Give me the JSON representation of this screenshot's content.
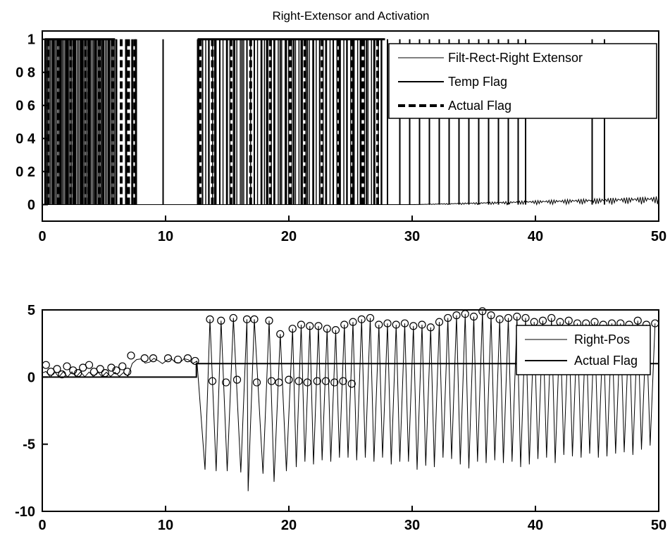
{
  "chart_data": [
    {
      "type": "line",
      "title": "Right-Extensor and Activation",
      "xlim": [
        0,
        50
      ],
      "ylim": [
        -0.1,
        1.05
      ],
      "x_ticks": [
        "0",
        "10",
        "20",
        "30",
        "40",
        "50"
      ],
      "y_ticks": [
        "0",
        "0 2",
        "0 4",
        "0 6",
        "0 8",
        "1"
      ],
      "y_tick_values": [
        0,
        0.2,
        0.4,
        0.6,
        0.8,
        1
      ],
      "legend": {
        "position": "top-right",
        "entries": [
          "Filt-Rect-Right Extensor",
          "Temp Flag",
          "Actual Flag"
        ]
      },
      "series": [
        {
          "name": "Filt-Rect-Right Extensor",
          "style": "solid-thin",
          "x_range": [
            0,
            50
          ],
          "baseline": 0.0,
          "late_amplitude": 0.05
        },
        {
          "name": "Temp Flag",
          "style": "solid",
          "pulses_x": [
            0.3,
            0.9,
            1.5,
            2.0,
            2.6,
            3.2,
            3.8,
            4.3,
            4.9,
            5.4,
            6.0,
            6.8,
            7.3,
            7.6,
            9.8,
            12.6,
            13.0,
            13.5,
            14.0,
            14.4,
            15.0,
            15.6,
            16.2,
            16.6,
            17.2,
            17.8,
            18.2,
            18.8,
            19.3,
            19.8,
            20.4,
            21.0,
            21.5,
            22.0,
            22.5,
            23.0,
            23.6,
            24.1,
            24.7,
            25.2,
            25.8,
            26.3,
            26.9,
            27.5,
            28.0,
            29.0,
            29.8,
            30.6,
            31.4,
            32.2,
            33.0,
            33.8,
            34.6,
            35.4,
            36.2,
            37.0,
            37.8,
            38.6,
            39.2,
            44.6,
            45.6
          ],
          "range": [
            0,
            1
          ]
        },
        {
          "name": "Actual Flag",
          "style": "dashed",
          "pulses_x": [
            0.5,
            1.3,
            2.3,
            3.5,
            4.6,
            5.7,
            6.4,
            7.0,
            7.5,
            12.8,
            13.8,
            15.3,
            16.9,
            18.5,
            20.1,
            21.3,
            22.7,
            24.0,
            25.1,
            26.0,
            27.2
          ],
          "range": [
            0,
            1
          ]
        }
      ]
    },
    {
      "type": "line",
      "title": "",
      "xlim": [
        0,
        50
      ],
      "ylim": [
        -10,
        5
      ],
      "x_ticks": [
        "0",
        "10",
        "20",
        "30",
        "40",
        "50"
      ],
      "y_ticks": [
        "-10",
        "-5",
        "0",
        "5"
      ],
      "y_tick_values": [
        -10,
        -5,
        0,
        5
      ],
      "legend": {
        "position": "top-right",
        "entries": [
          "Right-Pos",
          "Actual Flag"
        ]
      },
      "series": [
        {
          "name": "Right-Pos",
          "style": "solid-thin",
          "cycles": [
            [
              13.2,
              -6.9,
              13.6,
              4.3
            ],
            [
              14.1,
              -7.0,
              14.5,
              4.2
            ],
            [
              15.0,
              -7.0,
              15.5,
              4.4
            ],
            [
              16.1,
              -7.1,
              16.6,
              4.3
            ],
            [
              16.7,
              -8.5,
              17.2,
              4.3
            ],
            [
              17.9,
              -7.2,
              18.4,
              4.2
            ],
            [
              18.8,
              -7.8,
              19.3,
              3.2
            ],
            [
              19.8,
              -7.0,
              20.3,
              3.6
            ],
            [
              20.6,
              -6.7,
              21.0,
              3.9
            ],
            [
              21.3,
              -6.3,
              21.7,
              3.8
            ],
            [
              22.0,
              -6.5,
              22.4,
              3.8
            ],
            [
              22.7,
              -6.2,
              23.1,
              3.6
            ],
            [
              23.4,
              -6.3,
              23.8,
              3.5
            ],
            [
              24.1,
              -6.0,
              24.5,
              3.9
            ],
            [
              24.8,
              -6.0,
              25.2,
              4.1
            ],
            [
              25.5,
              -6.2,
              25.9,
              4.3
            ],
            [
              26.2,
              -6.0,
              26.6,
              4.4
            ],
            [
              26.9,
              -6.3,
              27.3,
              3.9
            ],
            [
              27.6,
              -6.0,
              28.0,
              4.0
            ],
            [
              28.3,
              -6.5,
              28.7,
              3.9
            ],
            [
              29.0,
              -6.3,
              29.4,
              4.0
            ],
            [
              29.7,
              -6.3,
              30.1,
              3.8
            ],
            [
              30.4,
              -6.9,
              30.8,
              3.9
            ],
            [
              31.1,
              -6.6,
              31.5,
              3.7
            ],
            [
              31.8,
              -6.7,
              32.2,
              4.1
            ],
            [
              32.5,
              -6.0,
              32.9,
              4.4
            ],
            [
              33.2,
              -6.1,
              33.6,
              4.6
            ],
            [
              33.9,
              -6.5,
              34.3,
              4.7
            ],
            [
              34.6,
              -6.8,
              35.0,
              4.5
            ],
            [
              35.3,
              -6.3,
              35.7,
              4.9
            ],
            [
              36.0,
              -6.4,
              36.4,
              4.6
            ],
            [
              36.7,
              -6.2,
              37.1,
              4.3
            ],
            [
              37.4,
              -6.4,
              37.8,
              4.4
            ],
            [
              38.1,
              -6.3,
              38.5,
              4.5
            ],
            [
              38.8,
              -6.7,
              39.2,
              4.4
            ],
            [
              39.5,
              -6.5,
              39.9,
              4.1
            ],
            [
              40.2,
              -6.1,
              40.6,
              4.2
            ],
            [
              40.9,
              -6.0,
              41.3,
              4.4
            ],
            [
              41.6,
              -6.4,
              42.0,
              4.1
            ],
            [
              42.3,
              -5.8,
              42.7,
              4.2
            ],
            [
              43.0,
              -5.9,
              43.4,
              4.0
            ],
            [
              43.7,
              -6.0,
              44.1,
              4.0
            ],
            [
              44.4,
              -5.7,
              44.8,
              4.1
            ],
            [
              45.1,
              -6.0,
              45.5,
              3.9
            ],
            [
              45.8,
              -5.9,
              46.2,
              4.0
            ],
            [
              46.5,
              -5.7,
              46.9,
              4.0
            ],
            [
              47.2,
              -5.6,
              47.6,
              3.9
            ],
            [
              47.9,
              -5.8,
              48.3,
              4.2
            ],
            [
              48.6,
              -5.4,
              49.0,
              3.9
            ],
            [
              49.3,
              -5.1,
              49.7,
              4.0
            ]
          ],
          "early_markers": [
            [
              0.3,
              0.9
            ],
            [
              0.7,
              0.4
            ],
            [
              1.2,
              0.6
            ],
            [
              1.6,
              0.2
            ],
            [
              2.0,
              0.8
            ],
            [
              2.5,
              0.5
            ],
            [
              2.9,
              0.3
            ],
            [
              3.3,
              0.7
            ],
            [
              3.8,
              0.9
            ],
            [
              4.2,
              0.4
            ],
            [
              4.7,
              0.6
            ],
            [
              5.1,
              0.3
            ],
            [
              5.6,
              0.7
            ],
            [
              6.0,
              0.5
            ],
            [
              6.5,
              0.8
            ],
            [
              6.9,
              0.4
            ],
            [
              7.2,
              1.6
            ],
            [
              8.3,
              1.4
            ],
            [
              9.0,
              1.4
            ],
            [
              10.2,
              1.4
            ],
            [
              11.0,
              1.3
            ],
            [
              11.8,
              1.4
            ],
            [
              12.4,
              1.2
            ]
          ],
          "trough_markers": [
            [
              13.8,
              -0.3
            ],
            [
              14.9,
              -0.4
            ],
            [
              15.8,
              -0.2
            ],
            [
              17.4,
              -0.4
            ],
            [
              18.6,
              -0.3
            ],
            [
              19.2,
              -0.4
            ],
            [
              20.0,
              -0.2
            ],
            [
              20.8,
              -0.3
            ],
            [
              21.5,
              -0.4
            ],
            [
              22.3,
              -0.3
            ],
            [
              23.0,
              -0.3
            ],
            [
              23.7,
              -0.4
            ],
            [
              24.4,
              -0.3
            ],
            [
              25.1,
              -0.5
            ]
          ]
        },
        {
          "name": "Actual Flag",
          "style": "solid",
          "level_early": 0.0,
          "level_late": 1.0,
          "switch_x": 12.5
        }
      ]
    }
  ]
}
